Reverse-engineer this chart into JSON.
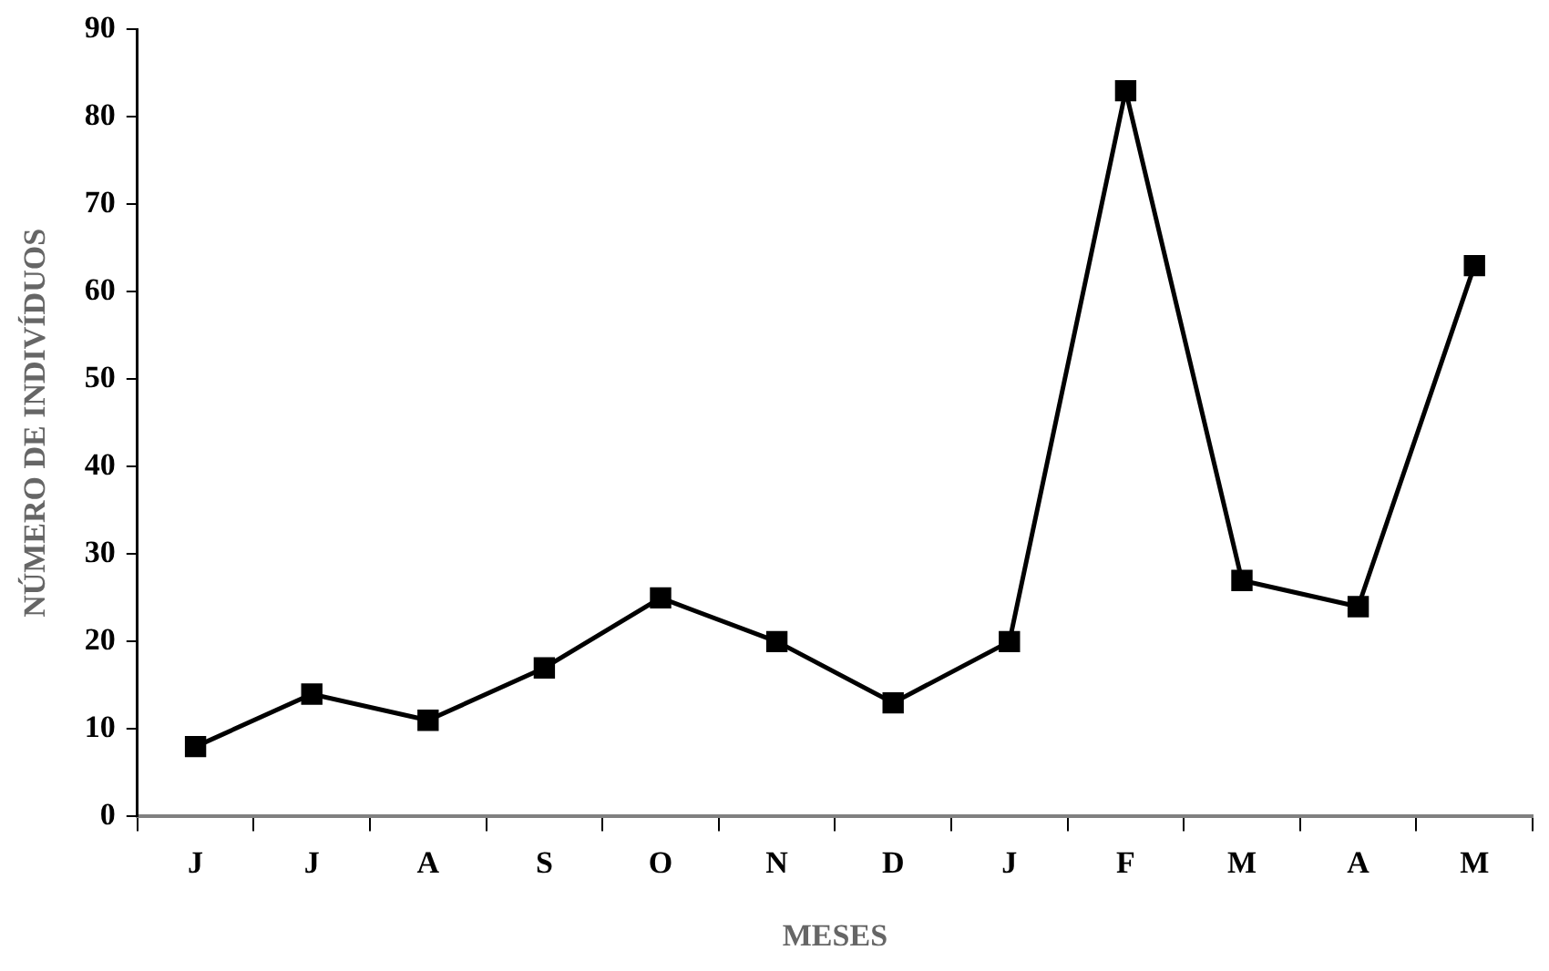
{
  "chart_data": {
    "type": "line",
    "xlabel": "MESES",
    "ylabel": "NÚMERO DE INDIVÍDUOS",
    "categories": [
      "J",
      "J",
      "A",
      "S",
      "O",
      "N",
      "D",
      "J",
      "F",
      "M",
      "A",
      "M"
    ],
    "series": [
      {
        "color": "#000000",
        "values": [
          8,
          14,
          11,
          17,
          25,
          20,
          13,
          20,
          83,
          27,
          24,
          63
        ]
      }
    ],
    "ylim": [
      0,
      90
    ],
    "yticks": [
      0,
      10,
      20,
      30,
      40,
      50,
      60,
      70,
      80,
      90
    ],
    "grid": false,
    "legend": false,
    "marker": "square",
    "line_style": "solid"
  }
}
